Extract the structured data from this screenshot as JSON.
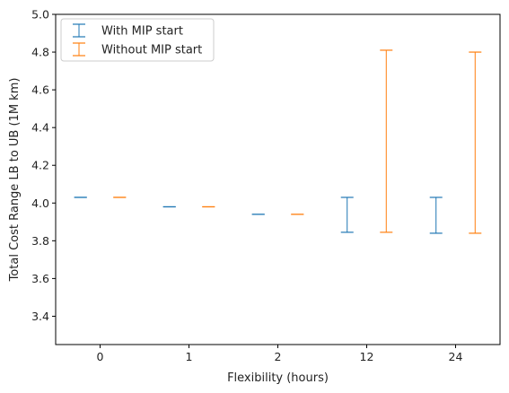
{
  "chart_data": {
    "type": "errorbar",
    "title": "",
    "xlabel": "Flexibility (hours)",
    "ylabel": "Total Cost Range LB to UB (1M km)",
    "categories": [
      "0",
      "1",
      "2",
      "12",
      "24"
    ],
    "ylim": [
      3.25,
      5.0
    ],
    "yticks": [
      3.4,
      3.6,
      3.8,
      4.0,
      4.2,
      4.4,
      4.6,
      4.8,
      5.0
    ],
    "legend_position": "top-left",
    "grid": false,
    "series": [
      {
        "name": "With MIP start",
        "color": "#1f77b4",
        "lower": [
          4.03,
          3.98,
          3.94,
          3.845,
          3.84
        ],
        "upper": [
          4.03,
          3.98,
          3.94,
          4.03,
          4.03
        ]
      },
      {
        "name": "Without MIP start",
        "color": "#ff7f0e",
        "lower": [
          4.03,
          3.98,
          3.94,
          3.845,
          3.84
        ],
        "upper": [
          4.03,
          3.98,
          3.94,
          4.81,
          4.8
        ]
      }
    ]
  }
}
